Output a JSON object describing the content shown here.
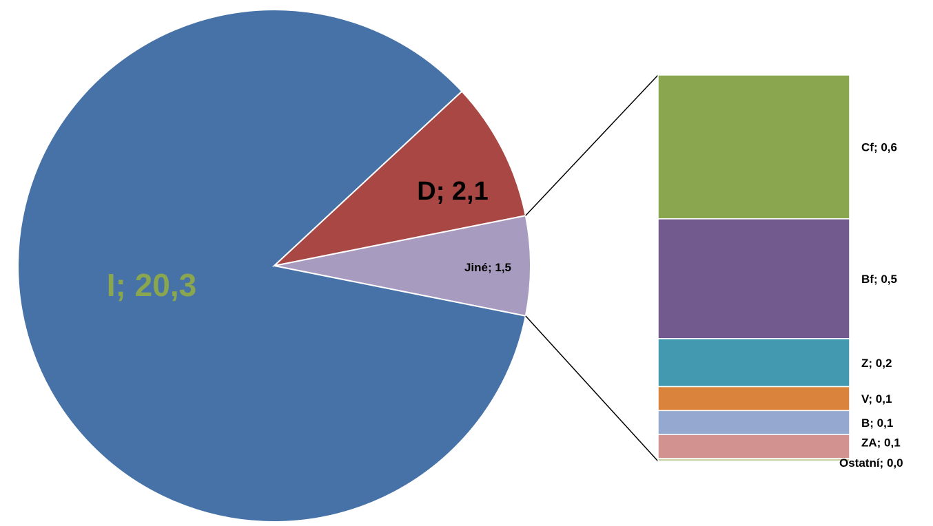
{
  "chart_data": {
    "type": "bar-of-pie",
    "pie": {
      "slices": [
        {
          "label": "I",
          "value": 20.3,
          "display": "I; 20,3",
          "color": "#4672A7"
        },
        {
          "label": "D",
          "value": 2.1,
          "display": "D; 2,1",
          "color": "#A84744"
        },
        {
          "label": "Jiné",
          "value": 1.5,
          "display": "Jiné; 1,5",
          "color": "#A89BC0"
        }
      ]
    },
    "bar": {
      "of": "Jiné",
      "segments": [
        {
          "label": "Cf",
          "value": 0.6,
          "display": "Cf; 0,6",
          "color": "#8AA64E"
        },
        {
          "label": "Bf",
          "value": 0.5,
          "display": "Bf; 0,5",
          "color": "#725A8E"
        },
        {
          "label": "Z",
          "value": 0.2,
          "display": "Z; 0,2",
          "color": "#4399AF"
        },
        {
          "label": "V",
          "value": 0.1,
          "display": "V; 0,1",
          "color": "#DA833C"
        },
        {
          "label": "B",
          "value": 0.1,
          "display": "B; 0,1",
          "color": "#95A9D0"
        },
        {
          "label": "ZA",
          "value": 0.1,
          "display": "ZA; 0,1",
          "color": "#D29290"
        },
        {
          "label": "Ostatní",
          "value": 0.0,
          "display": "Ostatní; 0,0",
          "color": "#C9D4A6"
        }
      ]
    },
    "label_colors": {
      "I": "#8AA64E",
      "D": "#000000",
      "Jiné": "#000000",
      "bar": "#000000"
    }
  }
}
